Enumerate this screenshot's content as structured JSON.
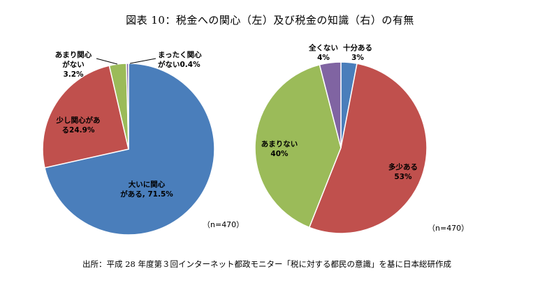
{
  "title": "図表 10：税金への関心（左）及び税金の知識（右）の有無",
  "source": "出所：平成 28 年度第３回インターネット都政モニター「税に対する都民の意識」を基に日本総研作成",
  "chart_data": [
    {
      "type": "pie",
      "slices": [
        {
          "label": "大いに関心がある",
          "value": 71.5,
          "color": "#4a7ebb",
          "lines": [
            "大いに関心",
            "がある, 71.5%"
          ]
        },
        {
          "label": "少し関心がある",
          "value": 24.9,
          "color": "#c0504d",
          "lines": [
            "少し関心があ",
            "る24.9%"
          ]
        },
        {
          "label": "あまり関心がない",
          "value": 3.2,
          "color": "#9bbb59",
          "lines": [
            "あまり関心",
            "がない",
            "3.2%"
          ]
        },
        {
          "label": "まったく関心がない",
          "value": 0.4,
          "color": "#8064a2",
          "lines": [
            "まったく関心",
            "がない0.4%"
          ]
        }
      ],
      "note": "（n=470）"
    },
    {
      "type": "pie",
      "slices": [
        {
          "label": "十分ある",
          "value": 3,
          "color": "#4a7ebb",
          "lines": [
            "十分ある",
            "3%"
          ]
        },
        {
          "label": "多少ある",
          "value": 53,
          "color": "#c0504d",
          "lines": [
            "多少ある",
            "53%"
          ]
        },
        {
          "label": "あまりない",
          "value": 40,
          "color": "#9bbb59",
          "lines": [
            "あまりない",
            "40%"
          ]
        },
        {
          "label": "全くない",
          "value": 4,
          "color": "#8064a2",
          "lines": [
            "全くない",
            "4%"
          ]
        }
      ],
      "note": "（n=470）"
    }
  ]
}
